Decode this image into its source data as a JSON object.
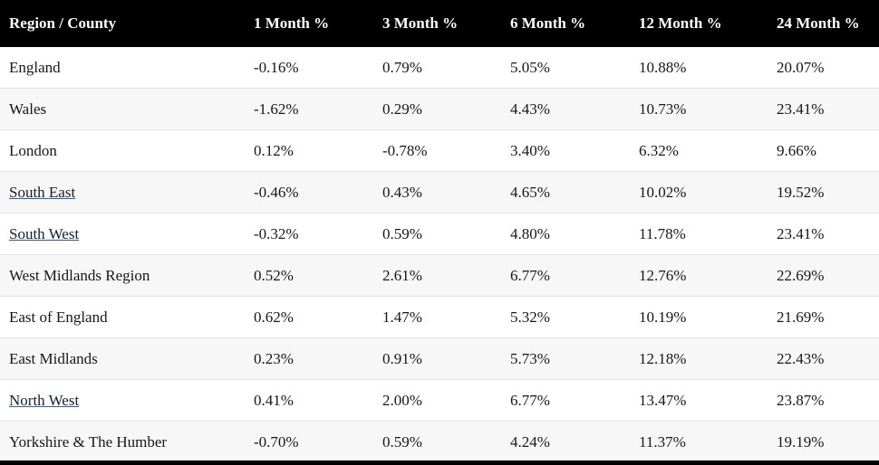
{
  "table": {
    "columns": [
      "Region / County",
      "1 Month %",
      "3 Month %",
      "6 Month %",
      "12 Month %",
      "24 Month %"
    ],
    "rows": [
      {
        "region": "England",
        "is_link": false,
        "values": [
          "-0.16%",
          "0.79%",
          "5.05%",
          "10.88%",
          "20.07%"
        ]
      },
      {
        "region": "Wales",
        "is_link": false,
        "values": [
          "-1.62%",
          "0.29%",
          "4.43%",
          "10.73%",
          "23.41%"
        ]
      },
      {
        "region": "London",
        "is_link": false,
        "values": [
          "0.12%",
          "-0.78%",
          "3.40%",
          "6.32%",
          "9.66%"
        ]
      },
      {
        "region": "South East",
        "is_link": true,
        "values": [
          "-0.46%",
          "0.43%",
          "4.65%",
          "10.02%",
          "19.52%"
        ]
      },
      {
        "region": "South West",
        "is_link": true,
        "values": [
          "-0.32%",
          "0.59%",
          "4.80%",
          "11.78%",
          "23.41%"
        ]
      },
      {
        "region": "West Midlands Region",
        "is_link": false,
        "values": [
          "0.52%",
          "2.61%",
          "6.77%",
          "12.76%",
          "22.69%"
        ]
      },
      {
        "region": "East of England",
        "is_link": false,
        "values": [
          "0.62%",
          "1.47%",
          "5.32%",
          "10.19%",
          "21.69%"
        ]
      },
      {
        "region": "East Midlands",
        "is_link": false,
        "values": [
          "0.23%",
          "0.91%",
          "5.73%",
          "12.18%",
          "22.43%"
        ]
      },
      {
        "region": "North West",
        "is_link": true,
        "values": [
          "0.41%",
          "2.00%",
          "6.77%",
          "13.47%",
          "23.87%"
        ]
      },
      {
        "region": "Yorkshire & The Humber",
        "is_link": false,
        "values": [
          "-0.70%",
          "0.59%",
          "4.24%",
          "11.37%",
          "19.19%"
        ]
      }
    ]
  },
  "colors": {
    "header_bg": "#000000",
    "header_text": "#ffffff",
    "row_alt_bg": "#f7f7f7",
    "row_border": "#e3e3e3",
    "body_text": "#171717",
    "link_underline": "#2a5db5"
  }
}
